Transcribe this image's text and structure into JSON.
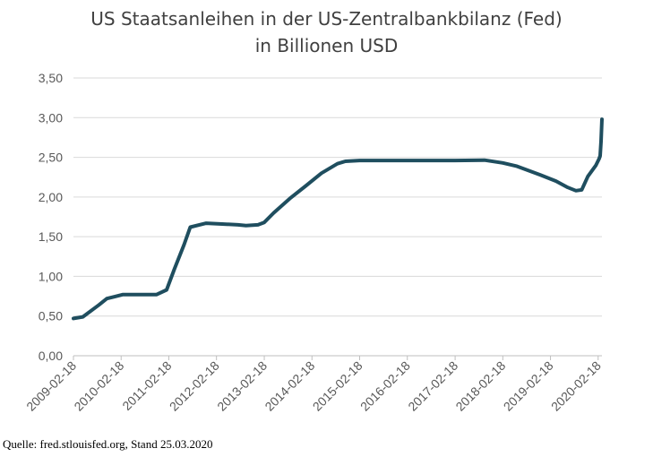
{
  "title_line1": "US Staatsanleihen in der US-Zentralbankbilanz (Fed)",
  "title_line2": "in Billionen USD",
  "source": "Quelle: fred.stlouisfed.org, Stand 25.03.2020",
  "colors": {
    "line": "#1f4e5f",
    "grid": "#d9d9d9",
    "text": "#595959"
  },
  "chart_data": {
    "type": "line",
    "title": "US Staatsanleihen in der US-Zentralbankbilanz (Fed) in Billionen USD",
    "xlabel": "",
    "ylabel": "",
    "ylim": [
      0,
      3.5
    ],
    "y_ticks": [
      "0,00",
      "0,50",
      "1,00",
      "1,50",
      "2,00",
      "2,50",
      "3,00",
      "3,50"
    ],
    "x_ticks": [
      "2009-02-18",
      "2010-02-18",
      "2011-02-18",
      "2012-02-18",
      "2013-02-18",
      "2014-02-18",
      "2015-02-18",
      "2016-02-18",
      "2017-02-18",
      "2018-02-18",
      "2019-02-18",
      "2020-02-18"
    ],
    "grid": true,
    "legend": "none",
    "series": [
      {
        "x": [
          "2009-02-18",
          "2009-05-01",
          "2009-09-01",
          "2009-11-01",
          "2010-03-01",
          "2010-08-01",
          "2010-10-01",
          "2010-11-15",
          "2011-02-01",
          "2011-04-01",
          "2011-06-15",
          "2011-08-01",
          "2011-12-01",
          "2012-04-01",
          "2012-08-01",
          "2012-10-01",
          "2013-01-01",
          "2013-02-18",
          "2013-05-01",
          "2013-09-01",
          "2014-01-01",
          "2014-05-01",
          "2014-09-01",
          "2014-11-01",
          "2015-02-18",
          "2016-02-18",
          "2016-08-01",
          "2017-02-18",
          "2017-10-01",
          "2018-02-18",
          "2018-06-01",
          "2018-12-01",
          "2019-04-01",
          "2019-07-01",
          "2019-09-01",
          "2019-10-15",
          "2019-12-01",
          "2020-02-01",
          "2020-02-25",
          "2020-03-04",
          "2020-03-11",
          "2020-03-18"
        ],
        "values": [
          0.47,
          0.49,
          0.64,
          0.72,
          0.77,
          0.77,
          0.77,
          0.77,
          0.83,
          1.09,
          1.4,
          1.62,
          1.67,
          1.66,
          1.65,
          1.64,
          1.65,
          1.68,
          1.8,
          1.98,
          2.14,
          2.3,
          2.42,
          2.45,
          2.46,
          2.46,
          2.46,
          2.46,
          2.465,
          2.43,
          2.39,
          2.28,
          2.2,
          2.12,
          2.08,
          2.09,
          2.26,
          2.4,
          2.48,
          2.52,
          2.7,
          2.98
        ]
      }
    ]
  }
}
